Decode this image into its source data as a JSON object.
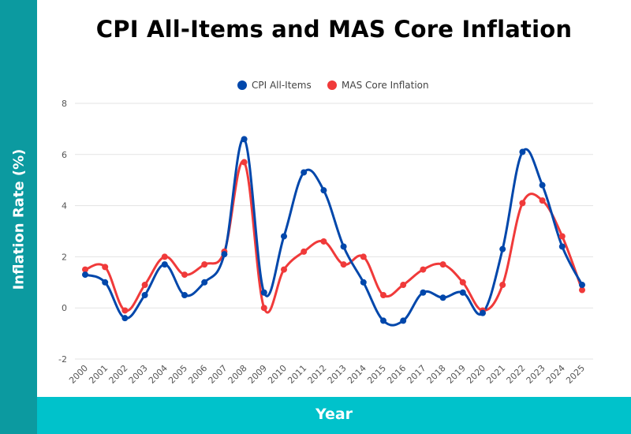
{
  "chart_data": {
    "type": "line",
    "title": "CPI All-Items and MAS Core Inflation",
    "xlabel": "Year",
    "ylabel": "Inflation Rate (%)",
    "ylim": [
      -2,
      8
    ],
    "yticks": [
      "-2",
      "0",
      "2",
      "4",
      "6",
      "8"
    ],
    "grid": true,
    "legend_position": "top",
    "x": [
      "2000",
      "2001",
      "2002",
      "2003",
      "2004",
      "2005",
      "2006",
      "2007",
      "2008",
      "2009",
      "2010",
      "2011",
      "2012",
      "2013",
      "2014",
      "2015",
      "2016",
      "2017",
      "2018",
      "2019",
      "2020",
      "2021",
      "2022",
      "2023",
      "2024",
      "2025"
    ],
    "series": [
      {
        "name": "CPI All-Items",
        "color": "#0047ab",
        "values": [
          1.3,
          1.0,
          -0.4,
          0.5,
          1.7,
          0.5,
          1.0,
          2.1,
          6.6,
          0.6,
          2.8,
          5.3,
          4.6,
          2.4,
          1.0,
          -0.5,
          -0.5,
          0.6,
          0.4,
          0.6,
          -0.2,
          2.3,
          6.1,
          4.8,
          2.4,
          0.9
        ]
      },
      {
        "name": "MAS Core Inflation",
        "color": "#f03a3a",
        "values": [
          1.5,
          1.6,
          -0.1,
          0.9,
          2.0,
          1.3,
          1.7,
          2.2,
          5.7,
          0.0,
          1.5,
          2.2,
          2.6,
          1.7,
          2.0,
          0.5,
          0.9,
          1.5,
          1.7,
          1.0,
          -0.1,
          0.9,
          4.1,
          4.2,
          2.8,
          0.7
        ]
      }
    ]
  },
  "colors": {
    "left_band": "#0c9aa0",
    "bottom_band": "#00c2cb"
  }
}
